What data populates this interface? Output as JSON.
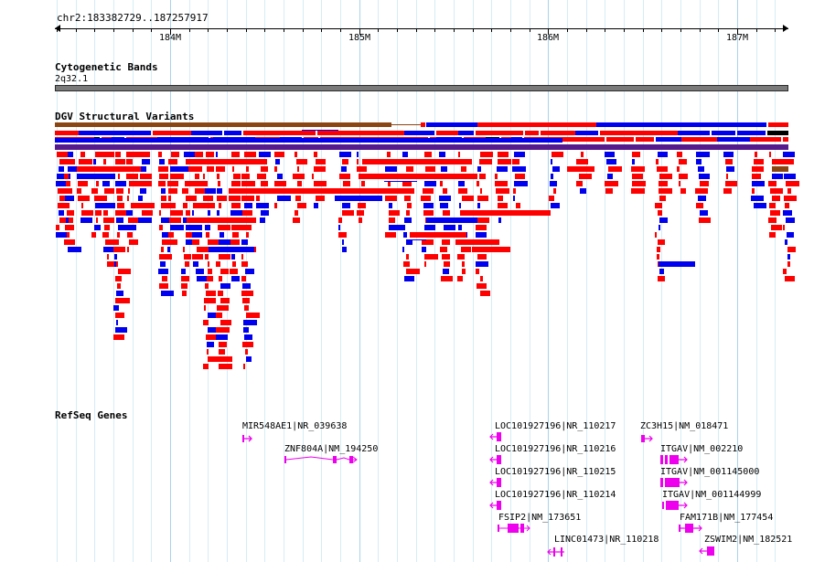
{
  "coordinates": "chr2:183382729..187257917",
  "ruler": {
    "ticks": [
      "184M",
      "185M",
      "186M",
      "187M"
    ]
  },
  "tracks": {
    "cytoband": {
      "title": "Cytogenetic Bands",
      "band": "2q32.1"
    },
    "dgv": {
      "title": "DGV Structural Variants"
    },
    "refseq": {
      "title": "RefSeq Genes"
    }
  },
  "colors": {
    "loss": "#ff0000",
    "gain": "#0000ee",
    "inversion": "#8b4513",
    "complex": "#551a8b",
    "gene": "#ee00ee",
    "cytoband": "#7a7a7a"
  },
  "genes": [
    {
      "label": "MIR548AE1|NR_039638",
      "strand": "+"
    },
    {
      "label": "ZNF804A|NM_194250",
      "strand": "+"
    },
    {
      "label": "LOC101927196|NR_110217",
      "strand": "-"
    },
    {
      "label": "LOC101927196|NR_110216",
      "strand": "-"
    },
    {
      "label": "LOC101927196|NR_110215",
      "strand": "-"
    },
    {
      "label": "LOC101927196|NR_110214",
      "strand": "-"
    },
    {
      "label": "FSIP2|NM_173651",
      "strand": "+"
    },
    {
      "label": "LINC01473|NR_110218",
      "strand": "-"
    },
    {
      "label": "ZC3H15|NM_018471",
      "strand": "+"
    },
    {
      "label": "ITGAV|NM_002210",
      "strand": "+"
    },
    {
      "label": "ITGAV|NM_001145000",
      "strand": "+"
    },
    {
      "label": "ITGAV|NM_001144999",
      "strand": "+"
    },
    {
      "label": "FAM171B|NM_177454",
      "strand": "+"
    },
    {
      "label": "ZSWIM2|NM_182521",
      "strand": "-"
    }
  ]
}
